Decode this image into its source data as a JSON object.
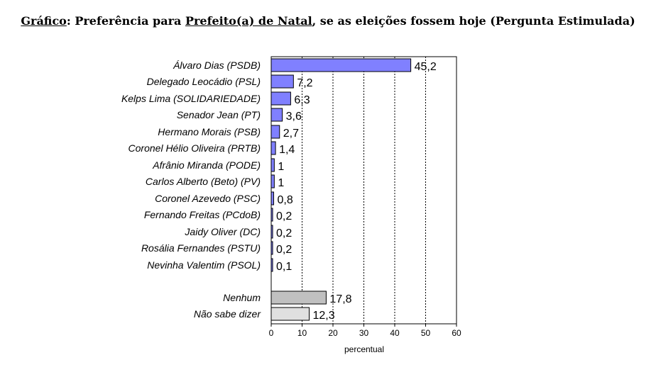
{
  "title": {
    "prefix": "Gráfico",
    "colon": ": Preferência para ",
    "underlined": "Prefeito(a) de Natal",
    "rest": ", se as eleições fossem hoje (Pergunta Estimulada)"
  },
  "chart_data": {
    "type": "bar",
    "orientation": "horizontal",
    "categories": [
      "Álvaro Dias (PSDB)",
      "Delegado Leocádio (PSL)",
      "Kelps Lima (SOLIDARIEDADE)",
      "Senador Jean (PT)",
      "Hermano Morais (PSB)",
      "Coronel Hélio Oliveira (PRTB)",
      "Afrânio Miranda (PODE)",
      "Carlos Alberto (Beto) (PV)",
      "Coronel Azevedo (PSC)",
      "Fernando Freitas (PCdoB)",
      "Jaidy Oliver (DC)",
      "Rosália Fernandes (PSTU)",
      "Nevinha Valentim (PSOL)",
      "Nenhum",
      "Não sabe dizer"
    ],
    "values": [
      45.2,
      7.2,
      6.3,
      3.6,
      2.7,
      1.4,
      1,
      1,
      0.8,
      0.2,
      0.2,
      0.2,
      0.1,
      17.8,
      12.3
    ],
    "value_labels": [
      "45,2",
      "7,2",
      "6,3",
      "3,6",
      "2,7",
      "1,4",
      "1",
      "1",
      "0,8",
      "0,2",
      "0,2",
      "0,2",
      "0,1",
      "17,8",
      "12,3"
    ],
    "bar_colors": [
      "#8080ff",
      "#8080ff",
      "#8080ff",
      "#8080ff",
      "#8080ff",
      "#8080ff",
      "#8080ff",
      "#8080ff",
      "#8080ff",
      "#8080ff",
      "#8080ff",
      "#8080ff",
      "#8080ff",
      "#c0c0c0",
      "#e0e0e0"
    ],
    "xlabel": "percentual",
    "ylabel": "",
    "xlim": [
      0,
      60
    ],
    "xticks": [
      0,
      10,
      20,
      30,
      40,
      50,
      60
    ],
    "grid": "vertical dashed",
    "legend": "none"
  }
}
